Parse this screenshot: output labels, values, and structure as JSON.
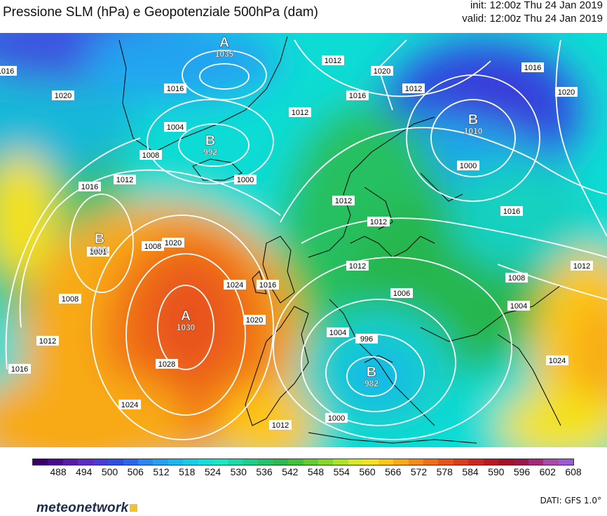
{
  "title": "Pressione SLM (hPa) e Geopotenziale 500hPa (dam)",
  "init": "init: 12:00z Thu 24 Jan 2019",
  "valid": "valid: 12:00z Thu 24 Jan 2019",
  "source": "DATI: GFS 1.0°",
  "logo": "meteonetwork",
  "colorbar": {
    "ticks": [
      "488",
      "494",
      "500",
      "506",
      "512",
      "518",
      "524",
      "530",
      "536",
      "542",
      "548",
      "554",
      "560",
      "566",
      "572",
      "578",
      "584",
      "590",
      "596",
      "602",
      "608"
    ],
    "colors": [
      "#3a006a",
      "#4b0a8a",
      "#5a1aa8",
      "#5b2bc4",
      "#4a3ad6",
      "#2f4fe0",
      "#2a66ea",
      "#2a86f0",
      "#24a0f2",
      "#1ab8f0",
      "#12cfe8",
      "#10e0dc",
      "#16e8c4",
      "#18dca8",
      "#1ccf88",
      "#22c46c",
      "#2eb850",
      "#46c038",
      "#62cc30",
      "#86d828",
      "#aee226",
      "#d6e826",
      "#f4e21c",
      "#fcc614",
      "#f8aa12",
      "#f48c14",
      "#ee6e18",
      "#e6541a",
      "#dc3c1c",
      "#cc2820",
      "#b81a24",
      "#a3122a",
      "#9a1848",
      "#a02c78",
      "#a84aa8",
      "#9a5ad0"
    ]
  },
  "pressure_centers": [
    {
      "type": "A",
      "value": "1035"
    },
    {
      "type": "B",
      "value": "992"
    },
    {
      "type": "B",
      "value": "1010"
    },
    {
      "type": "B",
      "value": "1001"
    },
    {
      "type": "A",
      "value": "1030"
    },
    {
      "type": "B",
      "value": "982"
    }
  ],
  "isobar_labels": [
    "1016",
    "1020",
    "1016",
    "1004",
    "1008",
    "1012",
    "1008",
    "1000",
    "1012",
    "1016",
    "1012",
    "1020",
    "1016",
    "1001",
    "1024",
    "1016",
    "1020",
    "1020",
    "1008",
    "1012",
    "1016",
    "1028",
    "1024",
    "1012",
    "1012",
    "1012",
    "1016",
    "1008",
    "1006",
    "1000",
    "1004",
    "1004",
    "1012",
    "996",
    "1000",
    "1012",
    "1016",
    "1020",
    "1024",
    "1012"
  ]
}
